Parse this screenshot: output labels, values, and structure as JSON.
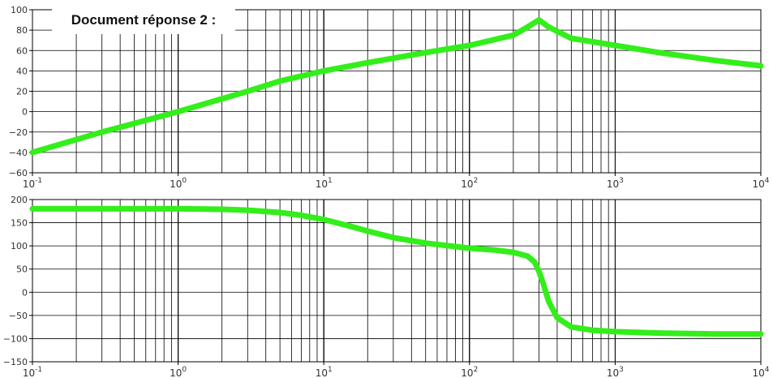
{
  "document_label": "Document réponse 2 :",
  "line_color": "#33ee1a",
  "grid_color": "#000000",
  "chart_data": [
    {
      "type": "line",
      "title": "",
      "xlabel": "",
      "ylabel": "",
      "x_scale": "log",
      "xlim": [
        0.1,
        10000
      ],
      "ylim": [
        -60,
        100
      ],
      "grid": true,
      "x_tick_labels": [
        {
          "value": 0.1,
          "base": "10",
          "exp": "-1"
        },
        {
          "value": 1,
          "base": "10",
          "exp": "0"
        },
        {
          "value": 10,
          "base": "10",
          "exp": "1"
        },
        {
          "value": 100,
          "base": "10",
          "exp": "2"
        },
        {
          "value": 1000,
          "base": "10",
          "exp": "3"
        },
        {
          "value": 10000,
          "base": "10",
          "exp": "4"
        }
      ],
      "y_ticks": [
        {
          "value": 100,
          "label": "100"
        },
        {
          "value": 80,
          "label": "80"
        },
        {
          "value": 60,
          "label": "60"
        },
        {
          "value": 40,
          "label": "40"
        },
        {
          "value": 20,
          "label": "20"
        },
        {
          "value": 0,
          "label": "0"
        },
        {
          "value": -20,
          "label": "−20"
        },
        {
          "value": -40,
          "label": "−40"
        },
        {
          "value": -60,
          "label": "−60"
        }
      ],
      "series": [
        {
          "x": [
            0.1,
            0.3,
            1,
            3,
            5,
            10,
            20,
            50,
            100,
            200,
            250,
            300,
            350,
            500,
            1000,
            2000,
            5000,
            10000
          ],
          "y": [
            -40,
            -20,
            0,
            20,
            30,
            40,
            48,
            58,
            65,
            75,
            83,
            90,
            83,
            72,
            65,
            58,
            50,
            45
          ]
        }
      ]
    },
    {
      "type": "line",
      "title": "",
      "xlabel": "",
      "ylabel": "",
      "x_scale": "log",
      "xlim": [
        0.1,
        10000
      ],
      "ylim": [
        -150,
        200
      ],
      "grid": true,
      "x_tick_labels": [
        {
          "value": 0.1,
          "base": "10",
          "exp": "-1"
        },
        {
          "value": 1,
          "base": "10",
          "exp": "0"
        },
        {
          "value": 10,
          "base": "10",
          "exp": "1"
        },
        {
          "value": 100,
          "base": "10",
          "exp": "2"
        },
        {
          "value": 1000,
          "base": "10",
          "exp": "3"
        },
        {
          "value": 10000,
          "base": "10",
          "exp": "4"
        }
      ],
      "y_ticks": [
        {
          "value": 200,
          "label": "200"
        },
        {
          "value": 150,
          "label": "150"
        },
        {
          "value": 100,
          "label": "100"
        },
        {
          "value": 50,
          "label": "50"
        },
        {
          "value": 0,
          "label": "0"
        },
        {
          "value": -50,
          "label": "−50"
        },
        {
          "value": -100,
          "label": "−100"
        },
        {
          "value": -150,
          "label": "−150"
        }
      ],
      "series": [
        {
          "x": [
            0.1,
            0.5,
            1,
            2,
            3,
            5,
            7,
            10,
            15,
            20,
            30,
            50,
            100,
            150,
            200,
            250,
            280,
            300,
            320,
            350,
            400,
            500,
            700,
            1000,
            2000,
            5000,
            10000
          ],
          "y": [
            180,
            180,
            180,
            179,
            177,
            172,
            166,
            157,
            143,
            132,
            118,
            106,
            95,
            91,
            86,
            78,
            65,
            45,
            20,
            -20,
            -55,
            -75,
            -82,
            -85,
            -88,
            -90,
            -90
          ]
        }
      ]
    }
  ]
}
